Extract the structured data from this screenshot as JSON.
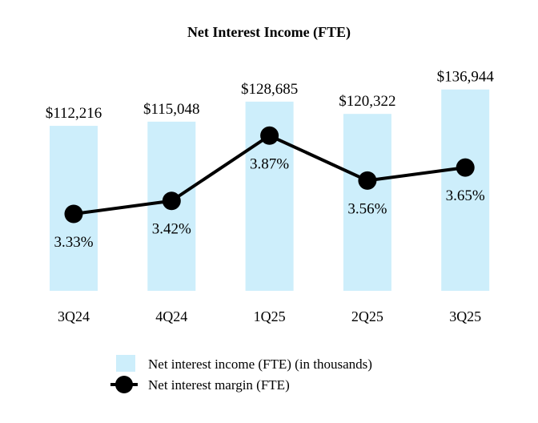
{
  "chart_data": {
    "type": "bar",
    "title": "Net Interest Income (FTE)",
    "categories": [
      "3Q24",
      "4Q24",
      "1Q25",
      "2Q25",
      "3Q25"
    ],
    "series": [
      {
        "name": "Net interest income (FTE) (in thousands)",
        "type": "bar",
        "axis": "left",
        "values": [
          112216,
          115048,
          128685,
          120322,
          136944
        ],
        "labels": [
          "$112,216",
          "$115,048",
          "$128,685",
          "$120,322",
          "$136,944"
        ],
        "color": "#cdeefb"
      },
      {
        "name": "Net interest margin (FTE)",
        "type": "line",
        "axis": "right",
        "values": [
          3.33,
          3.42,
          3.87,
          3.56,
          3.65
        ],
        "labels": [
          "3.33%",
          "3.42%",
          "3.87%",
          "3.56%",
          "3.65%"
        ],
        "color": "#000000"
      }
    ],
    "axes": {
      "left": {
        "visible": false,
        "ylim": [
          0,
          148000
        ]
      },
      "right": {
        "visible": false,
        "ylim": [
          2.8,
          4.3
        ]
      }
    },
    "grid": false,
    "legend_position": "bottom-center"
  }
}
